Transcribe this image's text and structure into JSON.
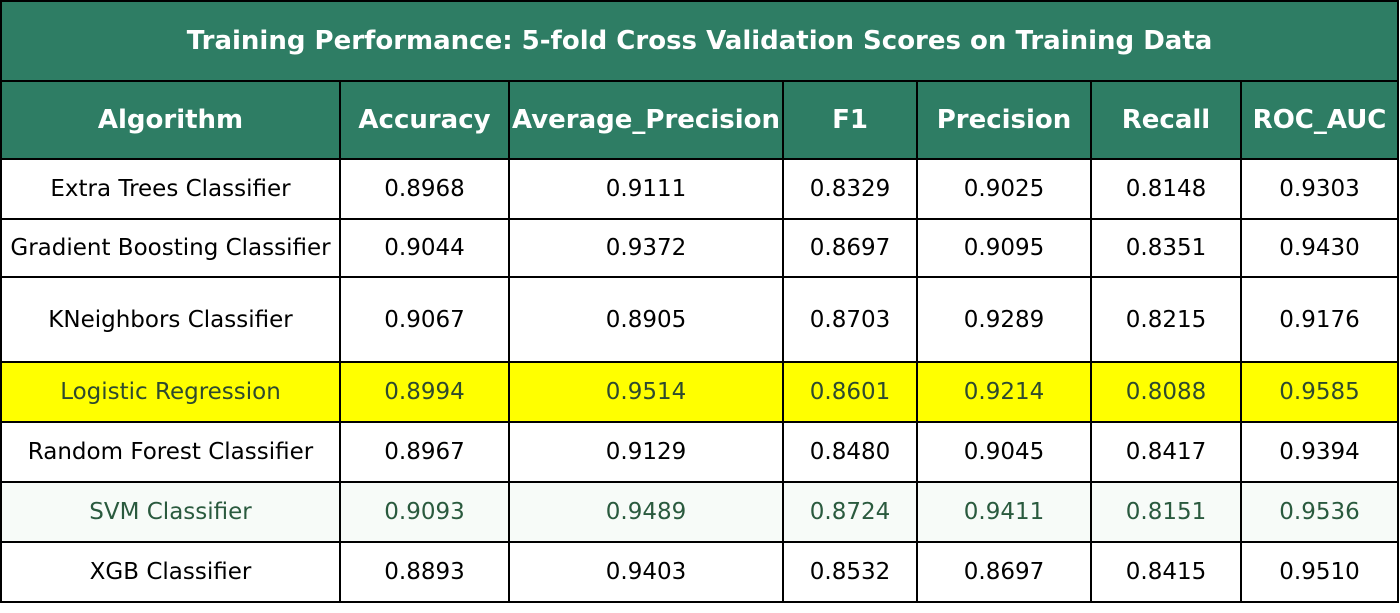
{
  "chart_data": {
    "type": "table",
    "title": "Training Performance: 5-fold Cross Validation Scores on Training Data",
    "columns": [
      "Algorithm",
      "Accuracy",
      "Average_Precision",
      "F1",
      "Precision",
      "Recall",
      "ROC_AUC"
    ],
    "rows": [
      {
        "algorithm": "Extra Trees Classifier",
        "values": [
          "0.8968",
          "0.9111",
          "0.8329",
          "0.9025",
          "0.8148",
          "0.9303"
        ]
      },
      {
        "algorithm": "Gradient Boosting Classifier",
        "values": [
          "0.9044",
          "0.9372",
          "0.8697",
          "0.9095",
          "0.8351",
          "0.9430"
        ]
      },
      {
        "algorithm": "KNeighbors Classifier",
        "values": [
          "0.9067",
          "0.8905",
          "0.8703",
          "0.9289",
          "0.8215",
          "0.9176"
        ]
      },
      {
        "algorithm": "Logistic Regression",
        "values": [
          "0.8994",
          "0.9514",
          "0.8601",
          "0.9214",
          "0.8088",
          "0.9585"
        ],
        "highlighted": true
      },
      {
        "algorithm": "Random Forest Classifier",
        "values": [
          "0.8967",
          "0.9129",
          "0.8480",
          "0.9045",
          "0.8417",
          "0.9394"
        ]
      },
      {
        "algorithm": "SVM Classifier",
        "values": [
          "0.9093",
          "0.9489",
          "0.8724",
          "0.9411",
          "0.8151",
          "0.9536"
        ]
      },
      {
        "algorithm": "XGB Classifier",
        "values": [
          "0.8893",
          "0.9403",
          "0.8532",
          "0.8697",
          "0.8415",
          "0.9510"
        ]
      }
    ]
  },
  "colors": {
    "header_bg": "#2e7d64",
    "header_text": "#ffffff",
    "highlight_bg": "#ffff00",
    "border": "#000000"
  }
}
